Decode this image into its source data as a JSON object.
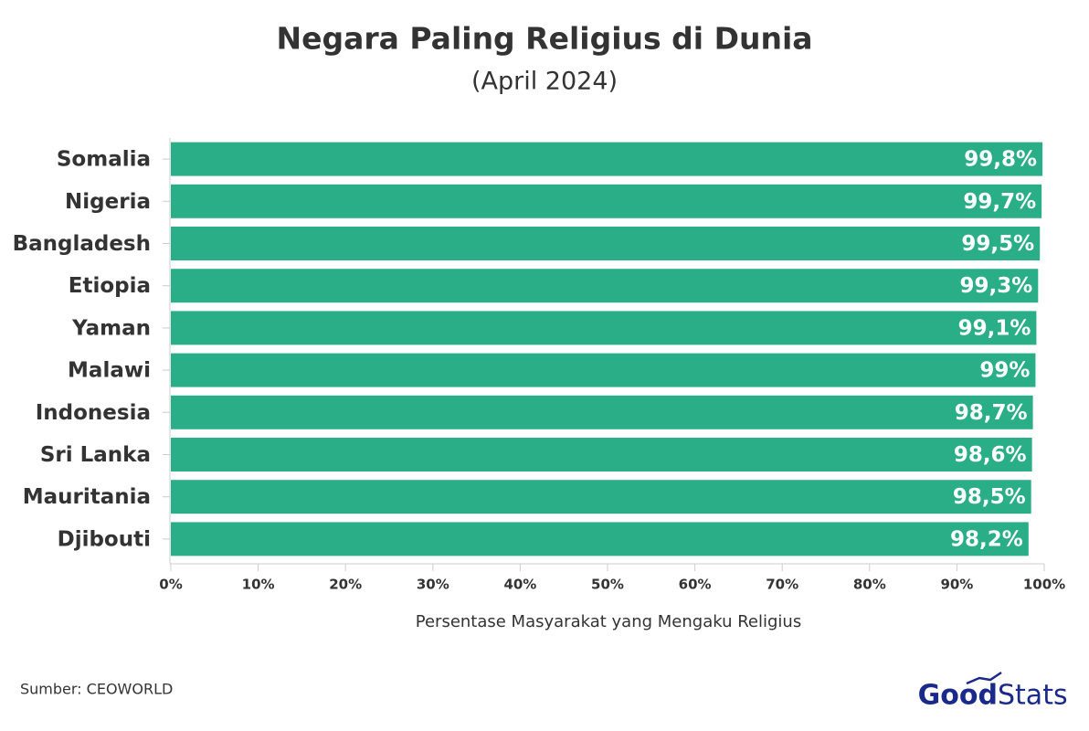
{
  "chart_data": {
    "type": "hbar",
    "title": "Negara Paling Religius di Dunia",
    "subtitle": "(April 2024)",
    "categories": [
      "Somalia",
      "Nigeria",
      "Bangladesh",
      "Etiopia",
      "Yaman",
      "Malawi",
      "Indonesia",
      "Sri Lanka",
      "Mauritania",
      "Djibouti"
    ],
    "values": [
      99.8,
      99.7,
      99.5,
      99.3,
      99.1,
      99,
      98.7,
      98.6,
      98.5,
      98.2
    ],
    "value_labels": [
      "99,8%",
      "99,7%",
      "99,5%",
      "99,3%",
      "99,1%",
      "99%",
      "98,7%",
      "98,6%",
      "98,5%",
      "98,2%"
    ],
    "color": "#2aae87",
    "xlim": [
      0,
      100
    ],
    "xticks": [
      {
        "value": 0,
        "label": "0%"
      },
      {
        "value": 10,
        "label": "10%"
      },
      {
        "value": 20,
        "label": "20%"
      },
      {
        "value": 30,
        "label": "30%"
      },
      {
        "value": 40,
        "label": "40%"
      },
      {
        "value": 50,
        "label": "50%"
      },
      {
        "value": 60,
        "label": "60%"
      },
      {
        "value": 70,
        "label": "70%"
      },
      {
        "value": 80,
        "label": "80%"
      },
      {
        "value": 90,
        "label": "90%"
      },
      {
        "value": 100,
        "label": "100%"
      }
    ],
    "x_label": "Persentase Masyarakat yang Mengaku Religius",
    "source": "Sumber: CEOWORLD",
    "brand": [
      "Good",
      "Stats"
    ]
  }
}
